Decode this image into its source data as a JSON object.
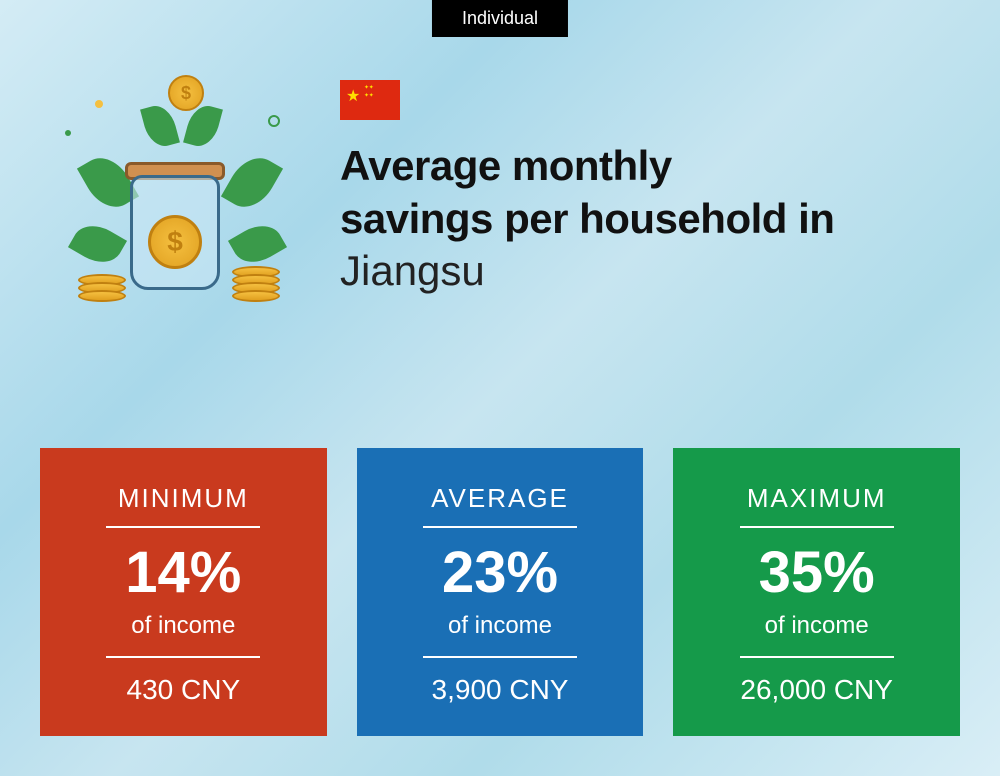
{
  "badge": "Individual",
  "title": {
    "line1": "Average monthly",
    "line2": "savings per household in",
    "region": "Jiangsu"
  },
  "flag": {
    "country": "China",
    "bg": "#de2910",
    "star": "#ffde00"
  },
  "cards": {
    "minimum": {
      "label": "MINIMUM",
      "percent": "14%",
      "subtext": "of income",
      "amount": "430 CNY",
      "bg": "#c93a1e"
    },
    "average": {
      "label": "AVERAGE",
      "percent": "23%",
      "subtext": "of income",
      "amount": "3,900 CNY",
      "bg": "#1a6fb5"
    },
    "maximum": {
      "label": "MAXIMUM",
      "percent": "35%",
      "subtext": "of income",
      "amount": "26,000 CNY",
      "bg": "#159a4a"
    }
  },
  "illustration": {
    "jar_border": "#3a6a8a",
    "coin_fill": "#f5c040",
    "coin_border": "#c08010",
    "leaf_color": "#3a9a4a",
    "lid_color": "#d09050"
  }
}
